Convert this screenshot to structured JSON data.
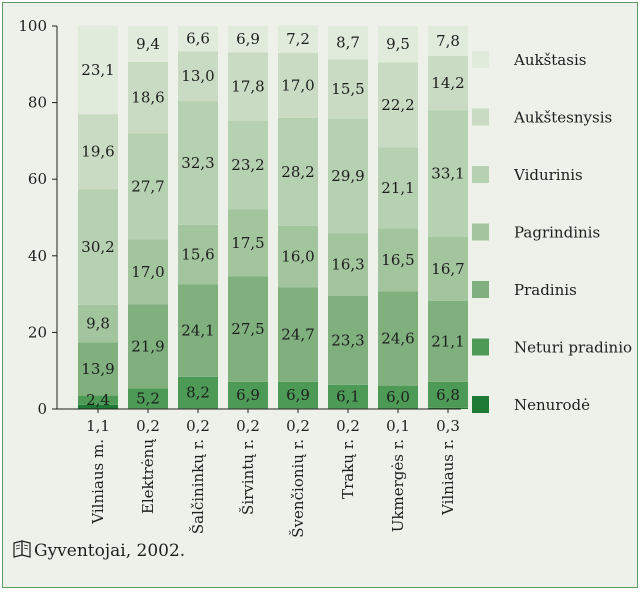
{
  "chart_data": {
    "type": "bar",
    "stacked": true,
    "ylim": [
      0,
      100
    ],
    "yticks": [
      0,
      20,
      40,
      60,
      80,
      100
    ],
    "categories": [
      "Vilniaus m.",
      "Elektrėnų",
      "Šalčininkų r.",
      "Širvintų r.",
      "Švenčionių r.",
      "Trakų r.",
      "Ukmergės r.",
      "Vilniaus r."
    ],
    "series": [
      {
        "name": "Nenurodė",
        "color": "#1e7a34",
        "values": [
          1.1,
          0.2,
          0.2,
          0.2,
          0.2,
          0.2,
          0.1,
          0.3
        ],
        "labels": [
          "1,1",
          "0,2",
          "0,2",
          "0,2",
          "0,2",
          "0,2",
          "0,1",
          "0,3"
        ]
      },
      {
        "name": "Neturi pradinio",
        "color": "#4c9a56",
        "values": [
          2.4,
          5.2,
          8.2,
          6.9,
          6.9,
          6.1,
          6.0,
          6.8
        ],
        "labels": [
          "2,4",
          "5,2",
          "8,2",
          "6,9",
          "6,9",
          "6,1",
          "6,0",
          "6,8"
        ]
      },
      {
        "name": "Pradinis",
        "color": "#7fb07e",
        "values": [
          13.9,
          21.9,
          24.1,
          27.5,
          24.7,
          23.3,
          24.6,
          21.1
        ],
        "labels": [
          "13,9",
          "21,9",
          "24,1",
          "27,5",
          "24,7",
          "23,3",
          "24,6",
          "21,1"
        ]
      },
      {
        "name": "Pagrindinis",
        "color": "#a2c59e",
        "values": [
          9.8,
          17.0,
          15.6,
          17.5,
          16.0,
          16.3,
          16.5,
          16.7
        ],
        "labels": [
          "9,8",
          "17,0",
          "15,6",
          "17,5",
          "16,0",
          "16,3",
          "16,5",
          "16,7"
        ]
      },
      {
        "name": "Vidurinis",
        "color": "#b6d1b1",
        "values": [
          30.2,
          27.7,
          32.3,
          23.2,
          28.2,
          29.9,
          21.1,
          33.1
        ],
        "labels": [
          "30,2",
          "27,7",
          "32,3",
          "23,2",
          "28,2",
          "29,9",
          "21,1",
          "33,1"
        ]
      },
      {
        "name": "Aukštesnysis",
        "color": "#c9dcc3",
        "values": [
          19.6,
          18.6,
          13.0,
          17.8,
          17.0,
          15.5,
          22.2,
          14.2
        ],
        "labels": [
          "19,6",
          "18,6",
          "13,0",
          "17,8",
          "17,0",
          "15,5",
          "22,2",
          "14,2"
        ]
      },
      {
        "name": "Aukštasis",
        "color": "#e0ebdc",
        "values": [
          23.1,
          9.4,
          6.6,
          6.9,
          7.2,
          8.7,
          9.5,
          7.8
        ],
        "labels": [
          "23,1",
          "9,4",
          "6,6",
          "6,9",
          "7,2",
          "8,7",
          "9,5",
          "7,8"
        ]
      }
    ],
    "legend_position": "right",
    "source": "Gyventojai, 2002."
  }
}
